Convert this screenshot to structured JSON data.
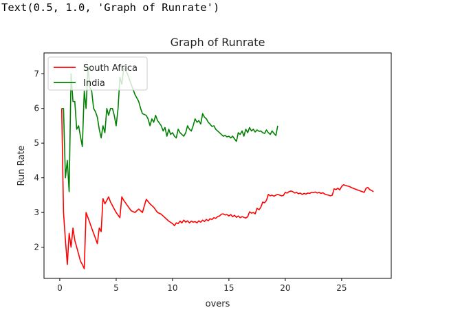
{
  "output": {
    "text": "Text(0.5, 1.0, 'Graph of Runrate')"
  },
  "chart_data": {
    "type": "line",
    "title": "Graph of Runrate",
    "xlabel": "overs",
    "ylabel": "Run Rate",
    "xlim": [
      -1.4,
      29.4
    ],
    "ylim": [
      1.1,
      7.6
    ],
    "xticks": [
      0,
      5,
      10,
      15,
      20,
      25
    ],
    "yticks": [
      2,
      3,
      4,
      5,
      6,
      7
    ],
    "grid": false,
    "legend_position": "upper-left",
    "series": [
      {
        "name": "South Africa",
        "color": "#ff0000",
        "points": [
          [
            0.17,
            6.0
          ],
          [
            0.33,
            3.0
          ],
          [
            0.5,
            2.2
          ],
          [
            0.67,
            1.5
          ],
          [
            0.83,
            2.4
          ],
          [
            1.0,
            2.0
          ],
          [
            1.17,
            2.55
          ],
          [
            1.33,
            2.2
          ],
          [
            1.5,
            2.0
          ],
          [
            1.67,
            1.8
          ],
          [
            1.83,
            1.6
          ],
          [
            2.0,
            1.5
          ],
          [
            2.17,
            1.38
          ],
          [
            2.33,
            3.0
          ],
          [
            2.5,
            2.85
          ],
          [
            2.67,
            2.7
          ],
          [
            2.83,
            2.55
          ],
          [
            3.0,
            2.4
          ],
          [
            3.17,
            2.25
          ],
          [
            3.33,
            2.1
          ],
          [
            3.5,
            2.55
          ],
          [
            3.67,
            2.45
          ],
          [
            3.83,
            3.4
          ],
          [
            4.0,
            3.25
          ],
          [
            4.17,
            3.35
          ],
          [
            4.33,
            3.45
          ],
          [
            4.5,
            3.3
          ],
          [
            4.67,
            3.2
          ],
          [
            4.83,
            3.1
          ],
          [
            5.0,
            3.0
          ],
          [
            5.33,
            2.85
          ],
          [
            5.5,
            3.45
          ],
          [
            5.67,
            3.35
          ],
          [
            6.0,
            3.2
          ],
          [
            6.33,
            3.05
          ],
          [
            6.67,
            3.0
          ],
          [
            7.0,
            3.1
          ],
          [
            7.33,
            3.0
          ],
          [
            7.67,
            3.38
          ],
          [
            8.0,
            3.25
          ],
          [
            8.33,
            3.15
          ],
          [
            8.67,
            3.0
          ],
          [
            9.0,
            2.95
          ],
          [
            9.33,
            2.85
          ],
          [
            9.67,
            2.75
          ],
          [
            10.0,
            2.68
          ],
          [
            10.17,
            2.62
          ],
          [
            10.33,
            2.7
          ],
          [
            10.5,
            2.68
          ],
          [
            10.67,
            2.75
          ],
          [
            10.83,
            2.7
          ],
          [
            11.0,
            2.78
          ],
          [
            11.17,
            2.72
          ],
          [
            11.33,
            2.76
          ],
          [
            11.5,
            2.7
          ],
          [
            11.67,
            2.75
          ],
          [
            11.83,
            2.72
          ],
          [
            12.0,
            2.74
          ],
          [
            12.17,
            2.7
          ],
          [
            12.33,
            2.76
          ],
          [
            12.5,
            2.72
          ],
          [
            12.67,
            2.78
          ],
          [
            12.83,
            2.74
          ],
          [
            13.0,
            2.8
          ],
          [
            13.17,
            2.76
          ],
          [
            13.33,
            2.82
          ],
          [
            13.5,
            2.8
          ],
          [
            13.67,
            2.85
          ],
          [
            13.83,
            2.83
          ],
          [
            14.0,
            2.88
          ],
          [
            14.17,
            2.9
          ],
          [
            14.33,
            2.95
          ],
          [
            14.5,
            2.96
          ],
          [
            14.67,
            2.93
          ],
          [
            14.83,
            2.94
          ],
          [
            15.0,
            2.9
          ],
          [
            15.17,
            2.94
          ],
          [
            15.33,
            2.88
          ],
          [
            15.5,
            2.92
          ],
          [
            15.67,
            2.86
          ],
          [
            15.83,
            2.9
          ],
          [
            16.0,
            2.85
          ],
          [
            16.17,
            2.88
          ],
          [
            16.33,
            2.86
          ],
          [
            16.5,
            2.84
          ],
          [
            16.67,
            2.88
          ],
          [
            16.83,
            3.02
          ],
          [
            17.0,
            2.98
          ],
          [
            17.17,
            3.0
          ],
          [
            17.33,
            2.96
          ],
          [
            17.5,
            3.12
          ],
          [
            17.67,
            3.08
          ],
          [
            17.83,
            3.15
          ],
          [
            18.0,
            3.3
          ],
          [
            18.17,
            3.28
          ],
          [
            18.33,
            3.35
          ],
          [
            18.5,
            3.52
          ],
          [
            18.67,
            3.48
          ],
          [
            18.83,
            3.5
          ],
          [
            19.0,
            3.47
          ],
          [
            19.17,
            3.5
          ],
          [
            19.33,
            3.52
          ],
          [
            19.5,
            3.5
          ],
          [
            19.67,
            3.48
          ],
          [
            19.83,
            3.49
          ],
          [
            20.0,
            3.58
          ],
          [
            20.17,
            3.56
          ],
          [
            20.33,
            3.6
          ],
          [
            20.5,
            3.62
          ],
          [
            20.67,
            3.6
          ],
          [
            20.83,
            3.56
          ],
          [
            21.0,
            3.58
          ],
          [
            21.17,
            3.54
          ],
          [
            21.33,
            3.56
          ],
          [
            21.5,
            3.52
          ],
          [
            21.67,
            3.55
          ],
          [
            21.83,
            3.53
          ],
          [
            22.0,
            3.56
          ],
          [
            22.17,
            3.55
          ],
          [
            22.33,
            3.58
          ],
          [
            22.5,
            3.57
          ],
          [
            22.67,
            3.59
          ],
          [
            22.83,
            3.56
          ],
          [
            23.0,
            3.58
          ],
          [
            23.17,
            3.55
          ],
          [
            23.33,
            3.57
          ],
          [
            23.5,
            3.53
          ],
          [
            23.67,
            3.51
          ],
          [
            23.83,
            3.5
          ],
          [
            24.0,
            3.48
          ],
          [
            24.17,
            3.5
          ],
          [
            24.33,
            3.68
          ],
          [
            24.5,
            3.66
          ],
          [
            24.67,
            3.7
          ],
          [
            24.83,
            3.65
          ],
          [
            25.0,
            3.75
          ],
          [
            25.17,
            3.8
          ],
          [
            25.33,
            3.78
          ],
          [
            25.67,
            3.75
          ],
          [
            26.0,
            3.7
          ],
          [
            26.33,
            3.66
          ],
          [
            26.67,
            3.62
          ],
          [
            27.0,
            3.58
          ],
          [
            27.17,
            3.7
          ],
          [
            27.33,
            3.72
          ],
          [
            27.5,
            3.66
          ],
          [
            27.83,
            3.6
          ]
        ]
      },
      {
        "name": "India",
        "color": "#008000",
        "points": [
          [
            0.17,
            6.0
          ],
          [
            0.33,
            6.0
          ],
          [
            0.5,
            4.0
          ],
          [
            0.67,
            4.5
          ],
          [
            0.83,
            3.6
          ],
          [
            1.0,
            7.0
          ],
          [
            1.17,
            6.2
          ],
          [
            1.33,
            6.2
          ],
          [
            1.5,
            5.4
          ],
          [
            1.67,
            5.5
          ],
          [
            1.83,
            5.2
          ],
          [
            2.0,
            4.9
          ],
          [
            2.17,
            6.5
          ],
          [
            2.33,
            6.0
          ],
          [
            2.5,
            7.2
          ],
          [
            2.67,
            6.6
          ],
          [
            2.83,
            6.5
          ],
          [
            3.0,
            6.0
          ],
          [
            3.17,
            5.9
          ],
          [
            3.33,
            5.75
          ],
          [
            3.5,
            5.4
          ],
          [
            3.67,
            5.15
          ],
          [
            3.83,
            5.5
          ],
          [
            4.0,
            5.3
          ],
          [
            4.17,
            6.0
          ],
          [
            4.33,
            5.8
          ],
          [
            4.5,
            6.0
          ],
          [
            4.67,
            6.0
          ],
          [
            4.83,
            5.8
          ],
          [
            5.0,
            5.5
          ],
          [
            5.17,
            6.0
          ],
          [
            5.33,
            6.9
          ],
          [
            5.5,
            6.7
          ],
          [
            5.67,
            7.15
          ],
          [
            5.83,
            7.1
          ],
          [
            6.0,
            7.0
          ],
          [
            6.33,
            6.7
          ],
          [
            6.67,
            6.4
          ],
          [
            7.0,
            6.2
          ],
          [
            7.17,
            6.0
          ],
          [
            7.33,
            5.85
          ],
          [
            7.67,
            5.8
          ],
          [
            7.83,
            5.7
          ],
          [
            8.0,
            5.5
          ],
          [
            8.17,
            5.7
          ],
          [
            8.33,
            5.6
          ],
          [
            8.5,
            5.8
          ],
          [
            8.67,
            5.65
          ],
          [
            9.0,
            5.5
          ],
          [
            9.17,
            5.35
          ],
          [
            9.33,
            5.45
          ],
          [
            9.5,
            5.2
          ],
          [
            9.67,
            5.4
          ],
          [
            9.83,
            5.25
          ],
          [
            10.0,
            5.3
          ],
          [
            10.17,
            5.2
          ],
          [
            10.33,
            5.15
          ],
          [
            10.5,
            5.4
          ],
          [
            10.67,
            5.3
          ],
          [
            10.83,
            5.25
          ],
          [
            11.0,
            5.2
          ],
          [
            11.17,
            5.3
          ],
          [
            11.33,
            5.5
          ],
          [
            11.5,
            5.4
          ],
          [
            11.67,
            5.35
          ],
          [
            11.83,
            5.5
          ],
          [
            12.0,
            5.7
          ],
          [
            12.17,
            5.6
          ],
          [
            12.33,
            5.65
          ],
          [
            12.5,
            5.55
          ],
          [
            12.67,
            5.85
          ],
          [
            12.83,
            5.75
          ],
          [
            13.0,
            5.7
          ],
          [
            13.17,
            5.6
          ],
          [
            13.33,
            5.55
          ],
          [
            13.5,
            5.48
          ],
          [
            13.67,
            5.5
          ],
          [
            13.83,
            5.4
          ],
          [
            14.0,
            5.35
          ],
          [
            14.17,
            5.3
          ],
          [
            14.33,
            5.25
          ],
          [
            14.5,
            5.2
          ],
          [
            14.67,
            5.22
          ],
          [
            14.83,
            5.18
          ],
          [
            15.0,
            5.2
          ],
          [
            15.17,
            5.15
          ],
          [
            15.33,
            5.2
          ],
          [
            15.5,
            5.12
          ],
          [
            15.67,
            5.05
          ],
          [
            15.83,
            5.3
          ],
          [
            16.0,
            5.25
          ],
          [
            16.17,
            5.35
          ],
          [
            16.33,
            5.2
          ],
          [
            16.5,
            5.4
          ],
          [
            16.67,
            5.3
          ],
          [
            16.83,
            5.45
          ],
          [
            17.0,
            5.35
          ],
          [
            17.17,
            5.4
          ],
          [
            17.33,
            5.32
          ],
          [
            17.5,
            5.38
          ],
          [
            17.67,
            5.34
          ],
          [
            17.83,
            5.35
          ],
          [
            18.0,
            5.3
          ],
          [
            18.17,
            5.28
          ],
          [
            18.33,
            5.38
          ],
          [
            18.5,
            5.3
          ],
          [
            18.67,
            5.25
          ],
          [
            18.83,
            5.35
          ],
          [
            19.0,
            5.28
          ],
          [
            19.17,
            5.22
          ],
          [
            19.33,
            5.5
          ]
        ]
      }
    ]
  }
}
